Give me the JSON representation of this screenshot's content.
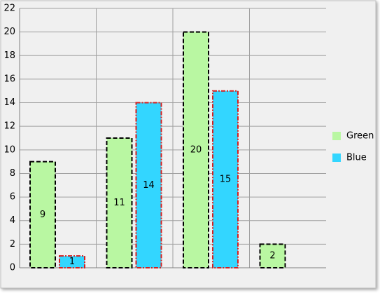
{
  "chart_data": {
    "type": "bar",
    "categories": [
      null,
      null,
      null,
      null
    ],
    "series": [
      {
        "name": "Green",
        "color": "#b9f7a2",
        "values": [
          9,
          11,
          20,
          2
        ]
      },
      {
        "name": "Blue",
        "color": "#33d6ff",
        "values": [
          1,
          14,
          15,
          null
        ]
      }
    ],
    "ylim": [
      0,
      22
    ],
    "yticks": [
      0,
      2,
      4,
      6,
      8,
      10,
      12,
      14,
      16,
      18,
      20,
      22
    ],
    "grid": true,
    "legend": "right"
  }
}
